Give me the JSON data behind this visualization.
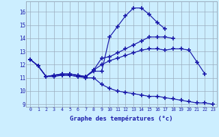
{
  "title": "Graphe des températures (°c)",
  "x_hours": [
    0,
    1,
    2,
    3,
    4,
    5,
    6,
    7,
    8,
    9,
    10,
    11,
    12,
    13,
    14,
    15,
    16,
    17,
    18,
    19,
    20,
    21,
    22,
    23
  ],
  "line1": [
    12.4,
    11.9,
    11.1,
    11.1,
    11.2,
    11.2,
    11.1,
    11.1,
    11.5,
    11.5,
    14.1,
    14.9,
    15.7,
    16.3,
    16.3,
    15.8,
    15.2,
    14.7,
    null,
    null,
    null,
    null,
    null,
    null
  ],
  "line2": [
    12.4,
    11.9,
    11.1,
    11.2,
    11.3,
    11.3,
    11.2,
    11.1,
    11.6,
    12.5,
    12.6,
    12.9,
    13.2,
    13.5,
    13.8,
    14.1,
    14.1,
    14.1,
    14.0,
    null,
    null,
    null,
    null,
    null
  ],
  "line3": [
    12.4,
    11.9,
    11.1,
    11.2,
    11.3,
    11.3,
    11.2,
    11.1,
    11.6,
    12.0,
    12.3,
    12.5,
    12.7,
    12.9,
    13.1,
    13.2,
    13.2,
    13.1,
    13.2,
    13.2,
    13.1,
    12.2,
    11.3,
    null
  ],
  "line4": [
    12.4,
    11.9,
    11.1,
    11.2,
    11.2,
    11.2,
    11.1,
    11.0,
    11.0,
    10.5,
    10.2,
    10.0,
    9.9,
    9.8,
    9.7,
    9.6,
    9.6,
    9.5,
    9.4,
    9.3,
    9.2,
    9.1,
    9.1,
    9.0
  ],
  "color": "#1a1aaa",
  "bg_color": "#cceeff",
  "grid_color": "#99aabb",
  "xlim": [
    0,
    23
  ],
  "ylim": [
    9,
    16.5
  ],
  "yticks": [
    9,
    10,
    11,
    12,
    13,
    14,
    15,
    16
  ],
  "xtick_labels": [
    "0",
    "1",
    "2",
    "3",
    "4",
    "5",
    "6",
    "7",
    "8",
    "9",
    "10",
    "11",
    "12",
    "13",
    "14",
    "15",
    "16",
    "17",
    "18",
    "19",
    "20",
    "21",
    "22",
    "23"
  ]
}
